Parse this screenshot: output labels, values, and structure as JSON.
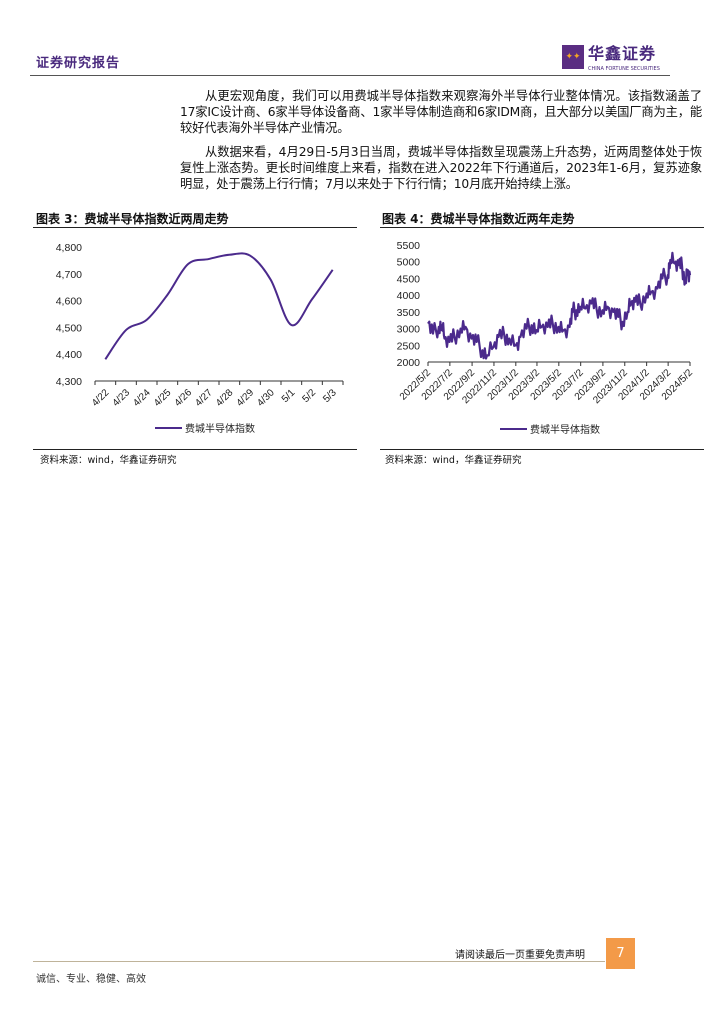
{
  "header": {
    "title": "证券研究报告",
    "logo_cn": "华鑫证券",
    "logo_en": "CHINA FORTUNE SECURITIES"
  },
  "body": {
    "paragraphs": [
      "从更宏观角度，我们可以用费城半导体指数来观察海外半导体行业整体情况。该指数涵盖了17家IC设计商、6家半导体设备商、1家半导体制造商和6家IDM商，且大部分以美国厂商为主，能较好代表海外半导体产业情况。",
      "从数据来看，4月29日-5月3日当周，费城半导体指数呈现震荡上升态势，近两周整体处于恢复性上涨态势。更长时间维度上来看，指数在进入2022年下行通道后，2023年1-6月，复苏迹象明显，处于震荡上行行情；7月以来处于下行行情；10月底开始持续上涨。"
    ]
  },
  "chart_data": [
    {
      "type": "line",
      "title": "图表 3：费城半导体指数近两周走势",
      "categories": [
        "4/22",
        "4/23",
        "4/24",
        "4/25",
        "4/26",
        "4/27",
        "4/28",
        "4/29",
        "4/30",
        "5/1",
        "5/2",
        "5/3"
      ],
      "series": [
        {
          "name": "费城半导体指数",
          "values": [
            4381,
            4490,
            4528,
            4621,
            4736,
            4755,
            4771,
            4768,
            4678,
            4509,
            4605,
            4715
          ]
        }
      ],
      "yticks": [
        "4,300",
        "4,400",
        "4,500",
        "4,600",
        "4,700",
        "4,800"
      ],
      "ylim": [
        4300,
        4800
      ],
      "legend": "bottom",
      "grid": false,
      "color": "#4b2a8c",
      "source": "资料来源：wind，华鑫证券研究"
    },
    {
      "type": "line",
      "title": "图表 4：费城半导体指数近两年走势",
      "xticks": [
        "2022/5/2",
        "2022/7/2",
        "2022/9/2",
        "2022/11/2",
        "2023/1/2",
        "2023/3/2",
        "2023/5/2",
        "2023/7/2",
        "2023/9/2",
        "2023/11/2",
        "2024/1/2",
        "2024/3/2",
        "2024/5/2"
      ],
      "x": [
        "2022-05-02",
        "2022-05-16",
        "2022-06-01",
        "2022-06-10",
        "2022-06-17",
        "2022-07-01",
        "2022-07-15",
        "2022-08-01",
        "2022-08-15",
        "2022-09-01",
        "2022-09-15",
        "2022-10-01",
        "2022-10-14",
        "2022-11-01",
        "2022-11-15",
        "2022-12-01",
        "2022-12-15",
        "2023-01-02",
        "2023-01-15",
        "2023-02-01",
        "2023-02-15",
        "2023-03-01",
        "2023-03-15",
        "2023-04-01",
        "2023-04-15",
        "2023-05-01",
        "2023-05-15",
        "2023-06-01",
        "2023-06-10",
        "2023-06-20",
        "2023-07-01",
        "2023-07-15",
        "2023-08-01",
        "2023-08-15",
        "2023-09-01",
        "2023-09-15",
        "2023-10-01",
        "2023-10-15",
        "2023-10-27",
        "2023-11-10",
        "2023-11-20",
        "2023-12-01",
        "2023-12-15",
        "2024-01-02",
        "2024-01-15",
        "2024-02-01",
        "2024-02-15",
        "2024-03-01",
        "2024-03-08",
        "2024-03-20",
        "2024-04-01",
        "2024-04-10",
        "2024-04-19",
        "2024-04-26",
        "2024-05-02"
      ],
      "series": [
        {
          "name": "费城半导体指数",
          "values": [
            3150,
            2850,
            3050,
            3100,
            2700,
            2600,
            2750,
            3000,
            3050,
            2700,
            2600,
            2350,
            2200,
            2450,
            2750,
            2800,
            2700,
            2500,
            2750,
            3000,
            3100,
            2950,
            3050,
            3050,
            3150,
            3050,
            2950,
            3050,
            3500,
            3550,
            3650,
            3600,
            3750,
            3600,
            3550,
            3650,
            3500,
            3350,
            3200,
            3500,
            3750,
            3800,
            3750,
            4050,
            4100,
            4200,
            4500,
            4600,
            5050,
            4950,
            4900,
            4850,
            4400,
            4750,
            4600
          ]
        }
      ],
      "yticks": [
        "2000",
        "2500",
        "3000",
        "3500",
        "4000",
        "4500",
        "5000",
        "5500"
      ],
      "ylim": [
        2000,
        5500
      ],
      "legend": "bottom",
      "grid": false,
      "color": "#4b2a8c",
      "source": "资料来源：wind，华鑫证券研究"
    }
  ],
  "footer": {
    "disclaimer": "请阅读最后一页重要免责声明",
    "page": "7",
    "motto": "诚信、专业、稳健、高效"
  }
}
